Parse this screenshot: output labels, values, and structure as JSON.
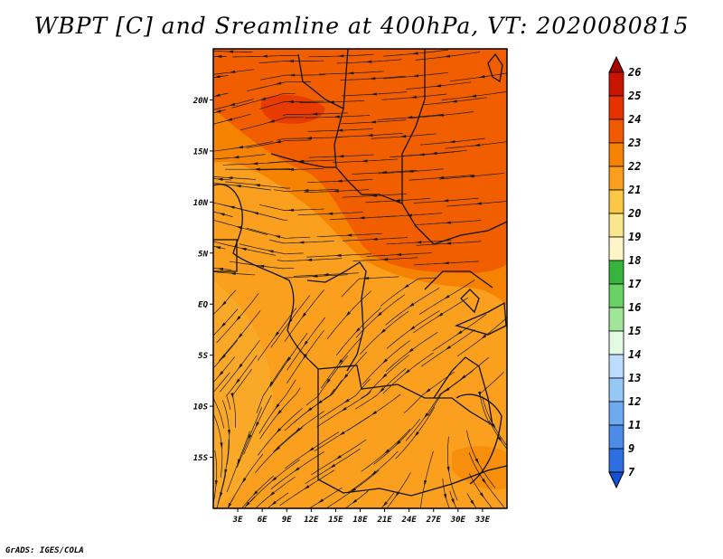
{
  "title": "WBPT [C] and Sreamline at 400hPa, VT: 2020080815",
  "credit": "GrADS: IGES/COLA",
  "map": {
    "variable": "WBPT [C]",
    "level": "400hPa",
    "valid_time": "2020080815",
    "lat_range": [
      -20,
      25
    ],
    "lon_range": [
      0,
      36
    ],
    "lat_ticks": [
      {
        "value": 20,
        "label": "20N"
      },
      {
        "value": 15,
        "label": "15N"
      },
      {
        "value": 10,
        "label": "10N"
      },
      {
        "value": 5,
        "label": "5N"
      },
      {
        "value": 0,
        "label": "EQ"
      },
      {
        "value": -5,
        "label": "5S"
      },
      {
        "value": -10,
        "label": "10S"
      },
      {
        "value": -15,
        "label": "15S"
      }
    ],
    "lon_ticks": [
      {
        "value": 3,
        "label": "3E"
      },
      {
        "value": 6,
        "label": "6E"
      },
      {
        "value": 9,
        "label": "9E"
      },
      {
        "value": 12,
        "label": "12E"
      },
      {
        "value": 15,
        "label": "15E"
      },
      {
        "value": 18,
        "label": "18E"
      },
      {
        "value": 21,
        "label": "21E"
      },
      {
        "value": 24,
        "label": "24E"
      },
      {
        "value": 27,
        "label": "27E"
      },
      {
        "value": 30,
        "label": "30E"
      },
      {
        "value": 33,
        "label": "33E"
      }
    ]
  },
  "colorbar": {
    "levels": [
      "26",
      "25",
      "24",
      "23",
      "22",
      "21",
      "20",
      "19",
      "18",
      "17",
      "16",
      "15",
      "14",
      "13",
      "12",
      "11",
      "9",
      "7"
    ],
    "colors": [
      "#a50000",
      "#c81400",
      "#e63200",
      "#f05a00",
      "#f58200",
      "#faa01e",
      "#fac846",
      "#fae68c",
      "#fff5c8",
      "#37b43c",
      "#69d264",
      "#a0e696",
      "#e1fae1",
      "#bedcff",
      "#96c8f5",
      "#6eaaf0",
      "#4b8ce6",
      "#2d6ee1",
      "#1450d2"
    ]
  }
}
